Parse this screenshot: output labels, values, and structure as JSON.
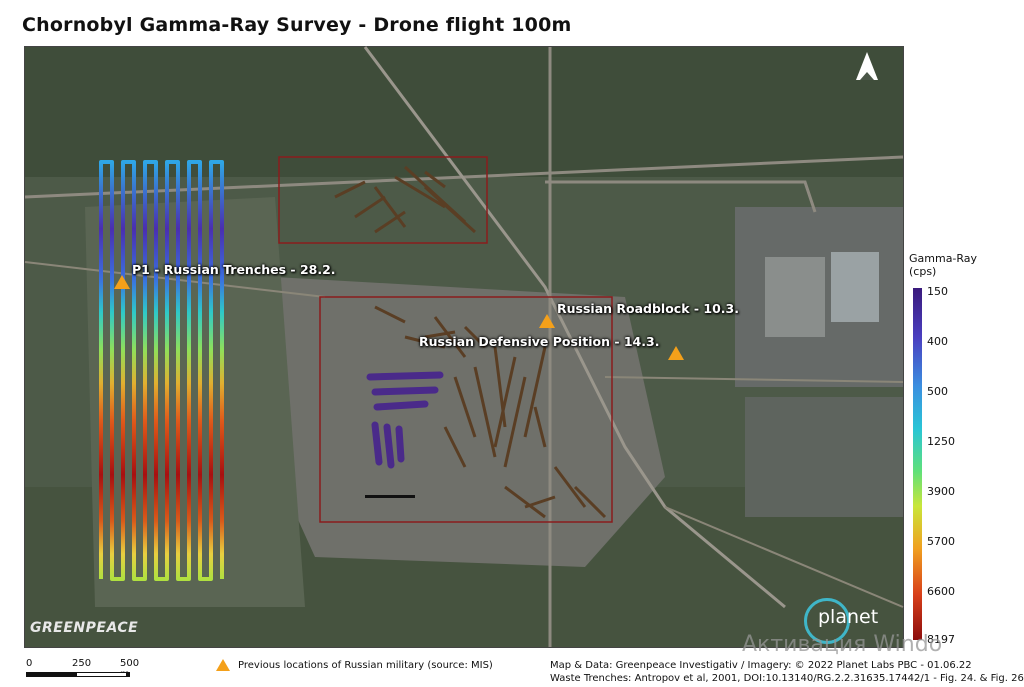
{
  "title": "Chornobyl Gamma-Ray Survey - Drone flight 100m",
  "legend": {
    "title_line1": "Gamma-Ray",
    "title_line2": "(cps)",
    "ticks": [
      "150",
      "400",
      "500",
      "1250",
      "3900",
      "5700",
      "6600",
      "8197"
    ]
  },
  "map_labels": {
    "p1": "P1  - Russian Trenches - 28.2.",
    "roadblock": "Russian Roadblock - 10.3.",
    "defensive": "Russian Defensive Position - 14.3."
  },
  "logos": {
    "greenpeace": "GREENPEACE",
    "planet": "planet"
  },
  "scale": {
    "labels": [
      "0",
      "250",
      "500 m"
    ]
  },
  "footer": {
    "legend_text": "Previous locations of Russian military (source: MIS)",
    "credit1": "Map & Data: Greenpeace Investigativ / Imagery: © 2022 Planet Labs PBC - 01.06.22",
    "credit2": "Waste Trenches: Antropov et al, 2001,  DOI:10.13140/RG.2.2.31635.17442/1 - Fig. 24. & Fig. 26"
  },
  "watermark": "Активация Windo",
  "colors": {
    "marker": "#f4a01a",
    "rect": "#8a1c1c"
  }
}
